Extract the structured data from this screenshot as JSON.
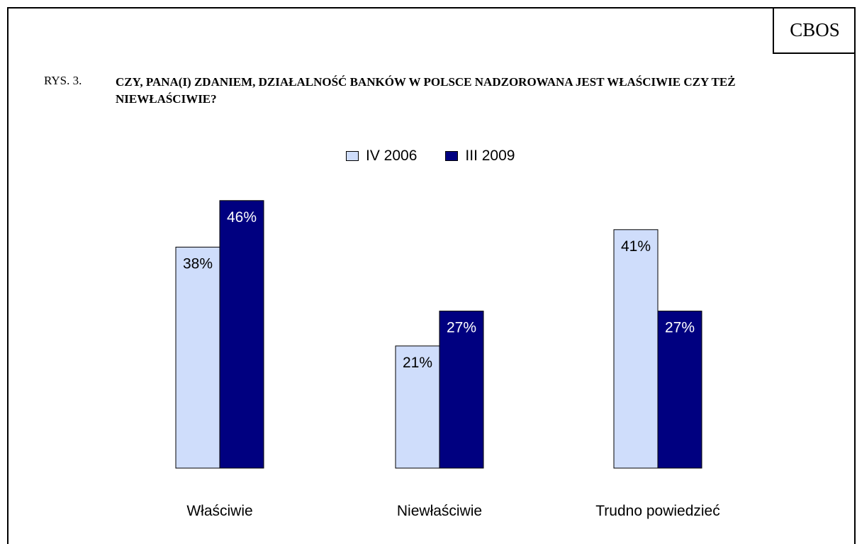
{
  "badge": "CBOS",
  "figure": {
    "label": "RYS. 3.",
    "title": "CZY, PANA(I) ZDANIEM, DZIAŁALNOŚĆ BANKÓW W POLSCE NADZOROWANA JEST WŁAŚCIWIE CZY TEŻ NIEWŁAŚCIWIE?"
  },
  "chart_data": {
    "type": "bar",
    "categories": [
      "Właściwie",
      "Niewłaściwie",
      "Trudno powiedzieć"
    ],
    "series": [
      {
        "name": "IV 2006",
        "values": [
          38,
          21,
          41
        ],
        "labels": [
          "38%",
          "21%",
          "41%"
        ],
        "color": "#cfddfb",
        "label_color": "#000000"
      },
      {
        "name": "III 2009",
        "values": [
          46,
          27,
          27
        ],
        "labels": [
          "46%",
          "27%",
          "27%"
        ],
        "color": "#000080",
        "label_color": "#ffffff"
      }
    ],
    "ylim": [
      0,
      100
    ],
    "legend": "top-center",
    "grid": false,
    "title": "",
    "xlabel": "",
    "ylabel": ""
  }
}
